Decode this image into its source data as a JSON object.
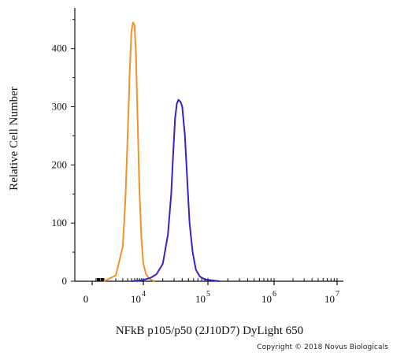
{
  "chart_data": {
    "type": "line",
    "title": "",
    "xlabel": "NFkB p105/p50 (2J10D7) DyLight 650",
    "ylabel": "Relative Cell Number",
    "x_scale": "biexponential",
    "x_ticks": [
      {
        "value": 0,
        "base": "0",
        "exp": ""
      },
      {
        "value": 10000,
        "base": "10",
        "exp": "4"
      },
      {
        "value": 100000,
        "base": "10",
        "exp": "5"
      },
      {
        "value": 1000000,
        "base": "10",
        "exp": "6"
      },
      {
        "value": 10000000,
        "base": "10",
        "exp": "7"
      }
    ],
    "y_ticks": [
      0,
      100,
      200,
      300,
      400
    ],
    "ylim": [
      0,
      470
    ],
    "grid": false,
    "series": [
      {
        "color": "#f0922a",
        "x": [
          1000,
          2000,
          3000,
          3500,
          4000,
          4500,
          5000,
          5500,
          6000,
          6500,
          7000,
          7500,
          8000,
          9000,
          10000,
          11000,
          12000,
          13000,
          15000
        ],
        "y": [
          0,
          10,
          60,
          140,
          250,
          360,
          430,
          445,
          440,
          390,
          300,
          220,
          150,
          70,
          30,
          12,
          6,
          3,
          0
        ]
      },
      {
        "color": "#3324c8",
        "x": [
          5000,
          10000,
          13000,
          16000,
          20000,
          24000,
          27000,
          29000,
          31000,
          33000,
          35000,
          38000,
          40000,
          44000,
          48000,
          52000,
          58000,
          65000,
          75000,
          90000,
          150000
        ],
        "y": [
          0,
          2,
          6,
          12,
          30,
          80,
          150,
          220,
          280,
          305,
          312,
          308,
          300,
          250,
          170,
          100,
          50,
          20,
          8,
          3,
          0
        ]
      }
    ]
  },
  "copyright": "Copyright © 2018 Novus Biologicals"
}
